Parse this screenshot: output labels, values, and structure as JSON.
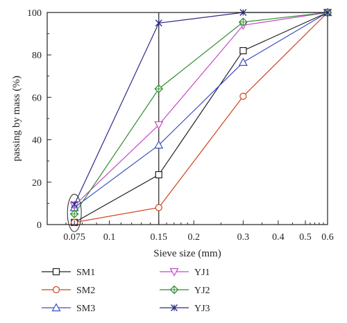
{
  "chart_data": {
    "type": "line",
    "xlabel": "Sieve size (mm)",
    "ylabel": "passing by mass (%)",
    "x_scale": "log",
    "xlim": [
      0.06,
      0.6
    ],
    "ylim": [
      0,
      100
    ],
    "x_ticks": [
      0.075,
      0.1,
      0.15,
      0.2,
      0.3,
      0.4,
      0.5,
      0.6
    ],
    "x_tick_labels": [
      "0.075",
      "0.1",
      "0.15",
      "0.2",
      "0.3",
      "0.4",
      "0.5",
      "0.6"
    ],
    "y_ticks": [
      0,
      20,
      40,
      60,
      80,
      100
    ],
    "y_tick_labels": [
      "0",
      "20",
      "40",
      "60",
      "80",
      "100"
    ],
    "vertical_reference_line_x": 0.15,
    "highlight_ellipse_x": 0.075,
    "grid": false,
    "legend_position": "bottom",
    "x": [
      0.075,
      0.15,
      0.3,
      0.6
    ],
    "series": [
      {
        "name": "SM1",
        "values": [
          1,
          23.5,
          82,
          100
        ],
        "color": "#222222",
        "marker": "square"
      },
      {
        "name": "SM2",
        "values": [
          1,
          8,
          60.5,
          100
        ],
        "color": "#d1401f",
        "marker": "circle"
      },
      {
        "name": "SM3",
        "values": [
          8,
          37.5,
          76.5,
          100
        ],
        "color": "#3a4fbf",
        "marker": "triangle-up"
      },
      {
        "name": "YJ1",
        "values": [
          9,
          47,
          94,
          100
        ],
        "color": "#c04ac4",
        "marker": "triangle-down"
      },
      {
        "name": "YJ2",
        "values": [
          5,
          64,
          95.5,
          100
        ],
        "color": "#2e8b2e",
        "marker": "diamond-plus"
      },
      {
        "name": "YJ3",
        "values": [
          9.5,
          95,
          100,
          100
        ],
        "color": "#2a2a8a",
        "marker": "star-x"
      }
    ]
  }
}
